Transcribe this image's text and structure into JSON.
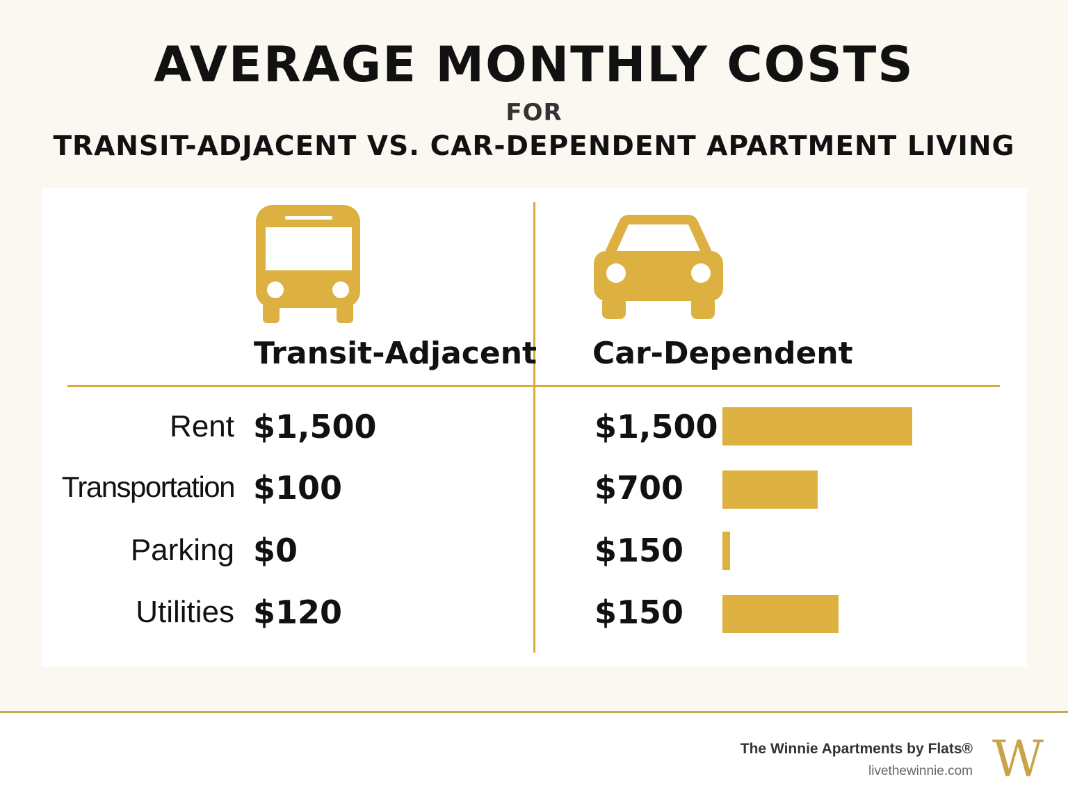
{
  "title": "AVERAGE MONTHLY COSTS",
  "for_text": "FOR",
  "subtitle": "TRANSIT-ADJACENT VS. CAR-DEPENDENT APARTMENT LIVING",
  "icons": {
    "transit": "bus-icon",
    "car": "car-icon"
  },
  "colors": {
    "accent": "#d9ab36",
    "bar": "#dcb142",
    "background": "#fbf8f1"
  },
  "chart_data": {
    "type": "table",
    "columns": [
      "Transit-Adjacent",
      "Car-Dependent"
    ],
    "categories": [
      "Rent",
      "Transportation",
      "Parking",
      "Utilities"
    ],
    "series": [
      {
        "name": "Transit-Adjacent",
        "values": [
          1500,
          100,
          0,
          120
        ],
        "labels": [
          "$1,500",
          "$100",
          "$0",
          "$120"
        ]
      },
      {
        "name": "Car-Dependent",
        "values": [
          1500,
          700,
          150,
          150
        ],
        "labels": [
          "$1,500",
          "$700",
          "$150",
          "$150"
        ]
      }
    ],
    "bar_series": "Car-Dependent",
    "bar_levels": [
      1,
      0.5,
      0.04,
      0.61
    ]
  },
  "footer": {
    "brand": "The Winnie Apartments by Flats®",
    "website": "livethewinnie.com",
    "logo": "W"
  }
}
